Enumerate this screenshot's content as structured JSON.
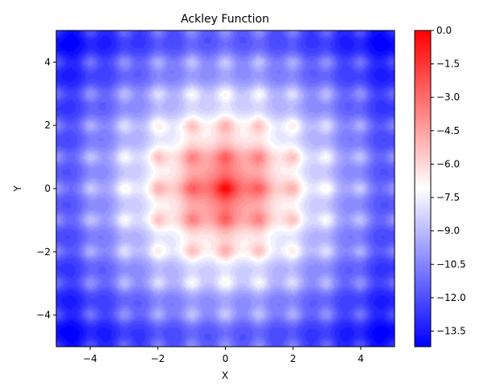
{
  "chart_data": {
    "type": "heatmap",
    "title": "Ackley Function",
    "xlabel": "X",
    "ylabel": "Y",
    "xlim": [
      -5,
      5
    ],
    "ylim": [
      -5,
      5
    ],
    "xticks": [
      -4,
      -2,
      0,
      2,
      4
    ],
    "yticks": [
      -4,
      -2,
      0,
      2,
      4
    ],
    "function": "-(-20*exp(-0.2*sqrt(0.5*(x^2+y^2))) - exp(0.5*(cos(2*pi*x)+cos(2*pi*y))) + e + 20)",
    "colorbar": {
      "range": [
        -14.2,
        0.0
      ],
      "ticks": [
        0.0,
        -1.5,
        -3.0,
        -4.5,
        -6.0,
        -7.5,
        -9.0,
        -10.5,
        -12.0,
        -13.5
      ],
      "tick_labels": [
        "0.0",
        "−1.5",
        "−3.0",
        "−4.5",
        "−6.0",
        "−7.5",
        "−9.0",
        "−10.5",
        "−12.0",
        "−13.5"
      ],
      "colormap": "bwr",
      "colors": {
        "low": "#0000ff",
        "mid": "#ffffff",
        "high": "#ff0000"
      }
    },
    "grid": false
  }
}
